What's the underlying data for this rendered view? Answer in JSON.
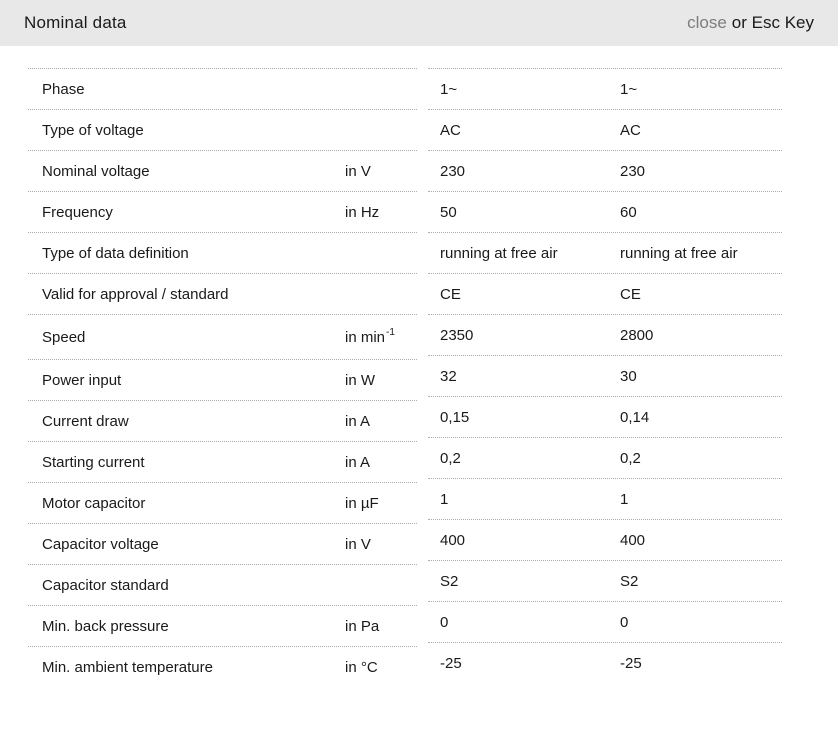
{
  "header": {
    "title": "Nominal data",
    "close_label": "close",
    "close_suffix": "or Esc Key"
  },
  "table": {
    "rows": [
      {
        "label": "Phase",
        "unit": "",
        "unit_sup": "",
        "values": [
          "1~",
          "1~"
        ]
      },
      {
        "label": "Type of voltage",
        "unit": "",
        "unit_sup": "",
        "values": [
          "AC",
          "AC"
        ]
      },
      {
        "label": "Nominal voltage",
        "unit": "in V",
        "unit_sup": "",
        "values": [
          "230",
          "230"
        ]
      },
      {
        "label": "Frequency",
        "unit": "in Hz",
        "unit_sup": "",
        "values": [
          "50",
          "60"
        ]
      },
      {
        "label": "Type of data definition",
        "unit": "",
        "unit_sup": "",
        "values": [
          "running at free air",
          "running at free air"
        ]
      },
      {
        "label": "Valid for approval / standard",
        "unit": "",
        "unit_sup": "",
        "values": [
          "CE",
          "CE"
        ]
      },
      {
        "label": "Speed",
        "unit": "in min",
        "unit_sup": "-1",
        "values": [
          "2350",
          "2800"
        ]
      },
      {
        "label": "Power input",
        "unit": "in W",
        "unit_sup": "",
        "values": [
          "32",
          "30"
        ]
      },
      {
        "label": "Current draw",
        "unit": "in A",
        "unit_sup": "",
        "values": [
          "0,15",
          "0,14"
        ]
      },
      {
        "label": "Starting current",
        "unit": "in A",
        "unit_sup": "",
        "values": [
          "0,2",
          "0,2"
        ]
      },
      {
        "label": "Motor capacitor",
        "unit": "in µF",
        "unit_sup": "",
        "values": [
          "1",
          "1"
        ]
      },
      {
        "label": "Capacitor voltage",
        "unit": "in V",
        "unit_sup": "",
        "values": [
          "400",
          "400"
        ]
      },
      {
        "label": "Capacitor standard",
        "unit": "",
        "unit_sup": "",
        "values": [
          "S2",
          "S2"
        ]
      },
      {
        "label": "Min. back pressure",
        "unit": "in Pa",
        "unit_sup": "",
        "values": [
          "0",
          "0"
        ]
      },
      {
        "label": "Min. ambient temperature",
        "unit": "in °C",
        "unit_sup": "",
        "values": [
          "-25",
          "-25"
        ]
      }
    ]
  },
  "colors": {
    "header_bg": "#e8e8e8",
    "close_link": "#7d7d7d",
    "text": "#1a1a1a",
    "row_border": "#aaaaaa"
  }
}
